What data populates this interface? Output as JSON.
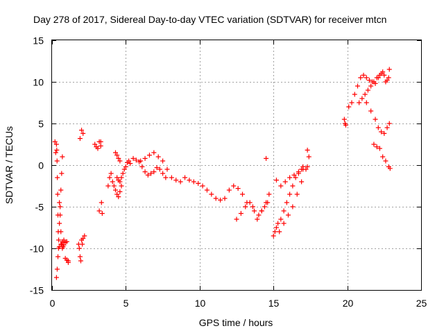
{
  "chart_data": {
    "type": "scatter",
    "title": "Day 278 of 2017, Sidereal Day-to-day VTEC variation (SDTVAR) for receiver mtcn",
    "xlabel": "GPS time / hours",
    "ylabel": "SDTVAR / TECUs",
    "xlim": [
      0,
      25
    ],
    "ylim": [
      -15,
      15
    ],
    "xticks": [
      "0",
      "5",
      "10",
      "15",
      "20",
      "25"
    ],
    "yticks": [
      "-15",
      "-10",
      "-5",
      "0",
      "5",
      "10",
      "15"
    ],
    "grid": true,
    "marker": "+",
    "color": "#ff0000",
    "series": [
      {
        "name": "SDTVAR",
        "x": [
          0.2,
          0.25,
          0.3,
          0.35,
          0.4,
          0.45,
          0.5,
          0.55,
          0.6,
          0.65,
          0.7,
          0.3,
          0.32,
          0.34,
          0.36,
          0.38,
          0.4,
          0.42,
          0.44,
          0.5,
          0.55,
          0.6,
          0.65,
          0.7,
          0.75,
          0.8,
          0.5,
          0.6,
          0.7,
          0.8,
          0.9,
          1.0,
          1.1,
          0.9,
          1.0,
          1.1,
          1.8,
          1.85,
          1.9,
          1.95,
          2.0,
          2.05,
          2.1,
          2.2,
          1.9,
          2.0,
          2.1,
          2.9,
          3.0,
          3.1,
          3.2,
          3.3,
          3.35,
          3.4,
          3.2,
          3.3,
          3.8,
          3.9,
          4.0,
          4.1,
          4.2,
          4.3,
          4.4,
          4.5,
          4.6,
          4.7,
          4.3,
          4.4,
          4.5,
          4.6,
          4.4,
          4.5,
          4.6,
          4.7,
          4.8,
          4.9,
          5.0,
          5.1,
          5.2,
          5.3,
          5.5,
          5.7,
          5.9,
          6.1,
          6.3,
          6.5,
          6.7,
          6.9,
          7.1,
          7.3,
          7.5,
          7.7,
          6.0,
          6.3,
          6.6,
          6.9,
          7.2,
          7.5,
          7.8,
          8.1,
          8.4,
          8.7,
          9.0,
          9.3,
          9.6,
          9.9,
          10.2,
          10.5,
          10.8,
          11.1,
          11.4,
          11.7,
          12.0,
          12.3,
          12.6,
          12.9,
          13.2,
          12.5,
          12.8,
          13.1,
          13.4,
          13.7,
          14.0,
          14.2,
          14.4,
          14.6,
          13.6,
          13.9,
          14.2,
          14.5,
          14.7,
          14.5,
          15.0,
          15.1,
          15.2,
          15.3,
          15.5,
          15.7,
          15.9,
          16.1,
          16.3,
          16.5,
          16.7,
          16.9,
          17.0,
          15.2,
          15.5,
          15.8,
          16.1,
          16.4,
          16.7,
          17.0,
          17.3,
          15.4,
          15.7,
          16.0,
          16.3,
          16.6,
          16.9,
          17.2,
          17.4,
          17.3,
          19.8,
          19.85,
          19.9,
          20.1,
          20.3,
          20.5,
          20.7,
          20.9,
          21.1,
          21.3,
          21.5,
          21.7,
          21.9,
          22.1,
          22.3,
          22.5,
          22.7,
          22.85,
          20.8,
          21.0,
          21.2,
          21.4,
          21.6,
          21.8,
          22.0,
          22.2,
          22.4,
          22.6,
          22.8,
          21.3,
          21.6,
          21.9,
          22.1,
          22.3,
          22.5,
          22.7,
          22.85,
          21.8,
          22.0,
          22.2,
          22.4,
          22.6,
          22.8,
          22.9
        ],
        "y": [
          2.8,
          1.5,
          -13.5,
          -12.5,
          -11,
          -9,
          -7,
          -5,
          -3,
          -1,
          1,
          2.5,
          1.8,
          0.5,
          -1.5,
          -3.5,
          -6,
          -8,
          -10,
          -4.5,
          -6,
          -8,
          -9.5,
          -10,
          -9.8,
          -9.6,
          -9.8,
          -9.5,
          -9.2,
          -9.0,
          -9.3,
          -9.2,
          -11.5,
          -11.2,
          -11.4,
          -11.7,
          -9.5,
          -10,
          -11,
          -11.5,
          -9,
          -9.5,
          -8.8,
          -8.5,
          3.2,
          4.2,
          3.8,
          2.5,
          2.2,
          2.0,
          2.8,
          2.3,
          -4.5,
          -5.8,
          -5.5,
          2.8,
          -2.5,
          -1.5,
          -1.0,
          -2.0,
          -2.5,
          -3.0,
          -3.5,
          -3.8,
          -3.2,
          -2.5,
          1.5,
          1.2,
          0.8,
          0.5,
          -1.5,
          -1.8,
          -2.0,
          -1.5,
          -1.0,
          -0.5,
          -0.2,
          0.3,
          0.5,
          0.2,
          0.8,
          0.6,
          0.4,
          -0.2,
          -0.8,
          -1.2,
          -1.0,
          -0.8,
          -0.3,
          -0.5,
          -1.0,
          -1.5,
          0.5,
          0.8,
          1.2,
          1.5,
          1.0,
          0.5,
          -0.5,
          -1.5,
          -1.8,
          -2.0,
          -1.5,
          -1.8,
          -2.0,
          -2.2,
          -2.5,
          -3.0,
          -3.5,
          -4.0,
          -4.2,
          -4.0,
          -3.0,
          -2.5,
          -2.8,
          -3.5,
          -4.5,
          -6.5,
          -5.8,
          -5.0,
          -4.5,
          -5.5,
          -6.0,
          -5.5,
          -5.0,
          -4.5,
          -5.0,
          -6.5,
          -5.5,
          -4.5,
          -3.5,
          0.8,
          -8.5,
          -8.0,
          -7.5,
          -7.0,
          -6.5,
          -5.5,
          -4.5,
          -3.5,
          -2.5,
          -1.5,
          -1.0,
          -0.5,
          -0.2,
          -1.8,
          -2.5,
          -2.0,
          -1.5,
          -1.2,
          -0.8,
          -0.5,
          -0.2,
          -8.0,
          -7.0,
          -6.0,
          -5.0,
          -3.5,
          -2.0,
          -0.5,
          1.0,
          1.8,
          5.5,
          5.0,
          4.8,
          7.0,
          7.5,
          8.5,
          9.5,
          10.5,
          10.8,
          10.5,
          10.2,
          10.0,
          9.8,
          10.5,
          11.0,
          10.8,
          10.2,
          11.5,
          7.5,
          8.0,
          8.5,
          9.0,
          9.5,
          10.0,
          10.5,
          10.8,
          11.2,
          10.0,
          10.5,
          7.5,
          6.5,
          5.5,
          4.5,
          4.0,
          3.8,
          4.5,
          5.0,
          2.5,
          2.2,
          2.0,
          1.0,
          0.5,
          -0.2,
          -0.4
        ]
      }
    ]
  }
}
